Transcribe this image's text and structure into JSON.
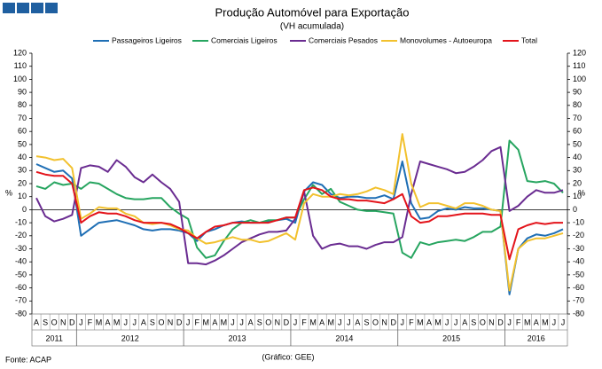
{
  "chart_data": {
    "type": "line",
    "title": "Produção Automóvel para Exportação",
    "subtitle": "(VH acumulada)",
    "ylabel": "%",
    "y2label": "%",
    "year_groups": [
      {
        "label": "2011",
        "months": [
          "A",
          "S",
          "O",
          "N",
          "D"
        ]
      },
      {
        "label": "2012",
        "months": [
          "J",
          "F",
          "M",
          "A",
          "M",
          "J",
          "J",
          "A",
          "S",
          "O",
          "N",
          "D"
        ]
      },
      {
        "label": "2013",
        "months": [
          "J",
          "F",
          "M",
          "A",
          "M",
          "J",
          "J",
          "A",
          "S",
          "O",
          "N",
          "D"
        ]
      },
      {
        "label": "2014",
        "months": [
          "J",
          "F",
          "M",
          "A",
          "M",
          "J",
          "J",
          "A",
          "S",
          "O",
          "N",
          "D"
        ]
      },
      {
        "label": "2015",
        "months": [
          "J",
          "F",
          "M",
          "A",
          "M",
          "J",
          "J",
          "A",
          "S",
          "O",
          "N",
          "D"
        ]
      },
      {
        "label": "2016",
        "months": [
          "J",
          "F",
          "M",
          "A",
          "M",
          "J",
          "J"
        ]
      }
    ],
    "ylim": [
      -80,
      120
    ],
    "yticks": [
      -80,
      -70,
      -60,
      -50,
      -40,
      -30,
      -20,
      -10,
      0,
      10,
      20,
      30,
      40,
      50,
      60,
      70,
      80,
      90,
      100,
      110,
      120
    ],
    "y2lim": [
      -80,
      120
    ],
    "y2ticks": [
      -80,
      -70,
      -60,
      -50,
      -40,
      -30,
      -20,
      -10,
      0,
      10,
      20,
      30,
      40,
      50,
      60,
      70,
      80,
      90,
      100,
      110,
      120
    ],
    "series": [
      {
        "name": "Passageiros Ligeiros",
        "color": "#1f6fb5",
        "values": [
          35,
          32,
          29,
          30,
          24,
          -20,
          -15,
          -10,
          -9,
          -8,
          -10,
          -12,
          -15,
          -16,
          -15,
          -15,
          -16,
          -18,
          -24,
          -17,
          -15,
          -12,
          -10,
          -9,
          -10,
          -10,
          -9,
          -8,
          -7,
          -10,
          14,
          21,
          19,
          12,
          9,
          10,
          10,
          9,
          9,
          11,
          8,
          37,
          5,
          -7,
          -6,
          -1,
          1,
          0,
          2,
          1,
          1,
          0,
          -1,
          -65,
          -30,
          -22,
          -19,
          -20,
          -18,
          -15
        ]
      },
      {
        "name": "Comerciais Ligeiros",
        "color": "#27a560",
        "values": [
          18,
          16,
          21,
          19,
          20,
          16,
          21,
          20,
          16,
          12,
          9,
          8,
          8,
          9,
          9,
          2,
          -3,
          -7,
          -29,
          -37,
          -35,
          -24,
          -15,
          -10,
          -8,
          -10,
          -8,
          -8,
          -6,
          -6,
          8,
          19,
          12,
          16,
          6,
          3,
          0,
          -1,
          -1,
          -2,
          -3,
          -33,
          -37,
          -25,
          -27,
          -25,
          -24,
          -23,
          -24,
          -21,
          -17,
          -17,
          -13,
          53,
          46,
          22,
          21,
          22,
          20,
          13
        ]
      },
      {
        "name": "Comerciais Pesados",
        "color": "#6a2c91",
        "values": [
          9,
          -5,
          -9,
          -7,
          -4,
          32,
          34,
          33,
          29,
          38,
          33,
          25,
          21,
          27,
          21,
          16,
          6,
          -41,
          -41,
          -42,
          -39,
          -35,
          -30,
          -25,
          -22,
          -19,
          -17,
          -17,
          -16,
          -7,
          14,
          -20,
          -30,
          -27,
          -26,
          -28,
          -28,
          -30,
          -27,
          -25,
          -25,
          -21,
          12,
          37,
          35,
          33,
          31,
          28,
          29,
          33,
          38,
          45,
          48,
          -1,
          3,
          10,
          15,
          13,
          13,
          15
        ]
      },
      {
        "name": "Monovolumes - Autoeuropa",
        "color": "#f2c12e",
        "values": [
          41,
          40,
          38,
          39,
          32,
          -7,
          -3,
          2,
          1,
          1,
          -3,
          -5,
          -10,
          -11,
          -10,
          -12,
          -15,
          -16,
          -22,
          -26,
          -25,
          -23,
          -21,
          -23,
          -23,
          -25,
          -24,
          -21,
          -18,
          -23,
          5,
          12,
          10,
          10,
          12,
          11,
          12,
          14,
          17,
          15,
          12,
          58,
          20,
          2,
          5,
          5,
          3,
          1,
          5,
          5,
          3,
          0,
          -1,
          -62,
          -30,
          -24,
          -22,
          -22,
          -20,
          -18
        ]
      },
      {
        "name": "Total",
        "color": "#e3141b",
        "values": [
          29,
          27,
          26,
          26,
          20,
          -10,
          -5,
          -2,
          -3,
          -3,
          -5,
          -8,
          -10,
          -10,
          -10,
          -11,
          -14,
          -18,
          -22,
          -17,
          -13,
          -12,
          -10,
          -10,
          -10,
          -10,
          -10,
          -8,
          -6,
          -6,
          15,
          17,
          15,
          10,
          8,
          8,
          7,
          7,
          6,
          5,
          8,
          12,
          -5,
          -10,
          -9,
          -5,
          -5,
          -4,
          -3,
          -3,
          -3,
          -4,
          -4,
          -38,
          -15,
          -12,
          -10,
          -11,
          -10,
          -10
        ]
      }
    ],
    "source": "Fonte: ACAP",
    "credit": "(Gráfico: GEE)"
  }
}
